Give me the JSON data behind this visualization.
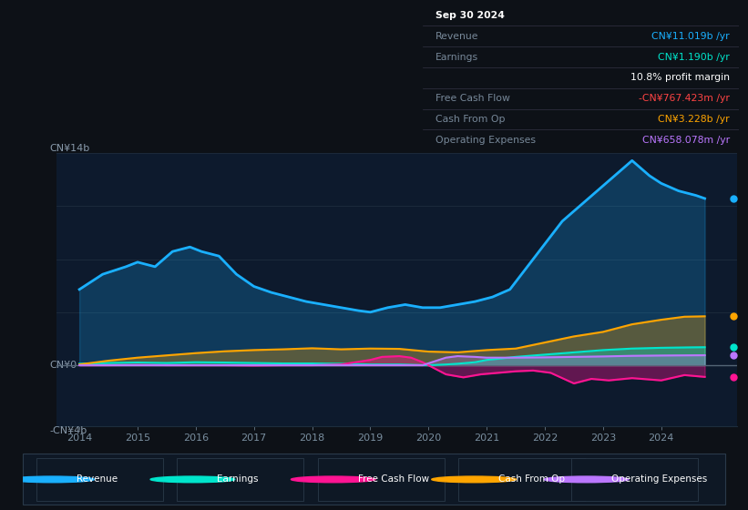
{
  "bg_color": "#0d1117",
  "chart_bg": "#0d1a2d",
  "revenue_x": [
    2014.0,
    2014.4,
    2014.8,
    2015.0,
    2015.3,
    2015.6,
    2015.9,
    2016.1,
    2016.4,
    2016.7,
    2017.0,
    2017.3,
    2017.6,
    2017.9,
    2018.2,
    2018.5,
    2018.8,
    2019.0,
    2019.3,
    2019.6,
    2019.9,
    2020.2,
    2020.5,
    2020.8,
    2021.1,
    2021.4,
    2021.7,
    2022.0,
    2022.3,
    2022.6,
    2022.9,
    2023.2,
    2023.5,
    2023.8,
    2024.0,
    2024.3,
    2024.6,
    2024.75
  ],
  "revenue_y": [
    5.0,
    6.0,
    6.5,
    6.8,
    6.5,
    7.5,
    7.8,
    7.5,
    7.2,
    6.0,
    5.2,
    4.8,
    4.5,
    4.2,
    4.0,
    3.8,
    3.6,
    3.5,
    3.8,
    4.0,
    3.8,
    3.8,
    4.0,
    4.2,
    4.5,
    5.0,
    6.5,
    8.0,
    9.5,
    10.5,
    11.5,
    12.5,
    13.5,
    12.5,
    12.0,
    11.5,
    11.2,
    11.0
  ],
  "earnings_x": [
    2014.0,
    2014.5,
    2015.0,
    2015.5,
    2016.0,
    2016.5,
    2017.0,
    2017.5,
    2018.0,
    2018.5,
    2019.0,
    2019.5,
    2019.8,
    2020.0,
    2020.3,
    2020.5,
    2020.8,
    2021.0,
    2021.5,
    2022.0,
    2022.5,
    2023.0,
    2023.5,
    2024.0,
    2024.5,
    2024.75
  ],
  "earnings_y": [
    0.1,
    0.15,
    0.18,
    0.15,
    0.2,
    0.18,
    0.15,
    0.12,
    0.12,
    0.1,
    0.05,
    0.05,
    0.02,
    0.0,
    0.05,
    0.1,
    0.2,
    0.35,
    0.55,
    0.7,
    0.85,
    1.0,
    1.1,
    1.15,
    1.18,
    1.19
  ],
  "fcf_x": [
    2014.0,
    2014.5,
    2015.0,
    2015.5,
    2016.0,
    2016.5,
    2017.0,
    2017.5,
    2018.0,
    2018.5,
    2019.0,
    2019.2,
    2019.5,
    2019.7,
    2019.9,
    2020.1,
    2020.3,
    2020.6,
    2020.9,
    2021.2,
    2021.5,
    2021.8,
    2022.1,
    2022.5,
    2022.8,
    2023.1,
    2023.5,
    2024.0,
    2024.4,
    2024.75
  ],
  "fcf_y": [
    0.0,
    0.0,
    0.02,
    0.0,
    0.0,
    0.0,
    -0.02,
    0.0,
    0.0,
    0.05,
    0.35,
    0.55,
    0.6,
    0.5,
    0.2,
    -0.2,
    -0.6,
    -0.8,
    -0.6,
    -0.5,
    -0.4,
    -0.35,
    -0.5,
    -1.2,
    -0.9,
    -1.0,
    -0.85,
    -1.0,
    -0.65,
    -0.77
  ],
  "cashop_x": [
    2014.0,
    2014.5,
    2015.0,
    2015.5,
    2016.0,
    2016.5,
    2017.0,
    2017.5,
    2018.0,
    2018.5,
    2019.0,
    2019.5,
    2020.0,
    2020.5,
    2021.0,
    2021.5,
    2022.0,
    2022.5,
    2023.0,
    2023.5,
    2024.0,
    2024.4,
    2024.75
  ],
  "cashop_y": [
    0.05,
    0.3,
    0.5,
    0.65,
    0.8,
    0.92,
    1.0,
    1.05,
    1.12,
    1.05,
    1.1,
    1.08,
    0.9,
    0.85,
    1.0,
    1.1,
    1.5,
    1.9,
    2.2,
    2.7,
    3.0,
    3.2,
    3.228
  ],
  "opex_x": [
    2014.0,
    2014.5,
    2015.0,
    2015.5,
    2016.0,
    2016.5,
    2017.0,
    2017.5,
    2018.0,
    2018.5,
    2019.0,
    2019.5,
    2019.9,
    2020.1,
    2020.3,
    2020.5,
    2020.8,
    2021.0,
    2021.5,
    2022.0,
    2022.5,
    2023.0,
    2023.5,
    2024.0,
    2024.4,
    2024.75
  ],
  "opex_y": [
    0.0,
    0.0,
    0.0,
    0.0,
    0.0,
    0.0,
    0.0,
    0.0,
    0.0,
    0.0,
    0.0,
    0.0,
    0.0,
    0.25,
    0.5,
    0.6,
    0.55,
    0.5,
    0.5,
    0.52,
    0.55,
    0.58,
    0.62,
    0.64,
    0.65,
    0.658
  ],
  "revenue_color": "#1ab0ff",
  "earnings_color": "#00e5cc",
  "fcf_color": "#ff1493",
  "cashop_color": "#ffa500",
  "opex_color": "#bb77ff",
  "ylim_min": -4,
  "ylim_max": 14,
  "xlim_min": 2013.6,
  "xlim_max": 2025.3,
  "xticks": [
    2014,
    2015,
    2016,
    2017,
    2018,
    2019,
    2020,
    2021,
    2022,
    2023,
    2024
  ],
  "grid_color": "#1e2d3d",
  "zero_line_color": "#556677",
  "info_box": {
    "date": "Sep 30 2024",
    "rows": [
      {
        "label": "Revenue",
        "value": "CN¥11.019b /yr",
        "lcolor": "#778899",
        "vcolor": "#1ab0ff"
      },
      {
        "label": "Earnings",
        "value": "CN¥1.190b /yr",
        "lcolor": "#778899",
        "vcolor": "#00e5cc"
      },
      {
        "label": "",
        "value": "10.8% profit margin",
        "lcolor": "#778899",
        "vcolor": "#ffffff"
      },
      {
        "label": "Free Cash Flow",
        "value": "-CN¥767.423m /yr",
        "lcolor": "#778899",
        "vcolor": "#ff4444"
      },
      {
        "label": "Cash From Op",
        "value": "CN¥3.228b /yr",
        "lcolor": "#778899",
        "vcolor": "#ffa500"
      },
      {
        "label": "Operating Expenses",
        "value": "CN¥658.078m /yr",
        "lcolor": "#778899",
        "vcolor": "#bb77ff"
      }
    ],
    "bg": "#020a12",
    "border": "#333344",
    "date_color": "#ffffff"
  },
  "legend_items": [
    {
      "label": "Revenue",
      "color": "#1ab0ff"
    },
    {
      "label": "Earnings",
      "color": "#00e5cc"
    },
    {
      "label": "Free Cash Flow",
      "color": "#ff1493"
    },
    {
      "label": "Cash From Op",
      "color": "#ffa500"
    },
    {
      "label": "Operating Expenses",
      "color": "#bb77ff"
    }
  ]
}
